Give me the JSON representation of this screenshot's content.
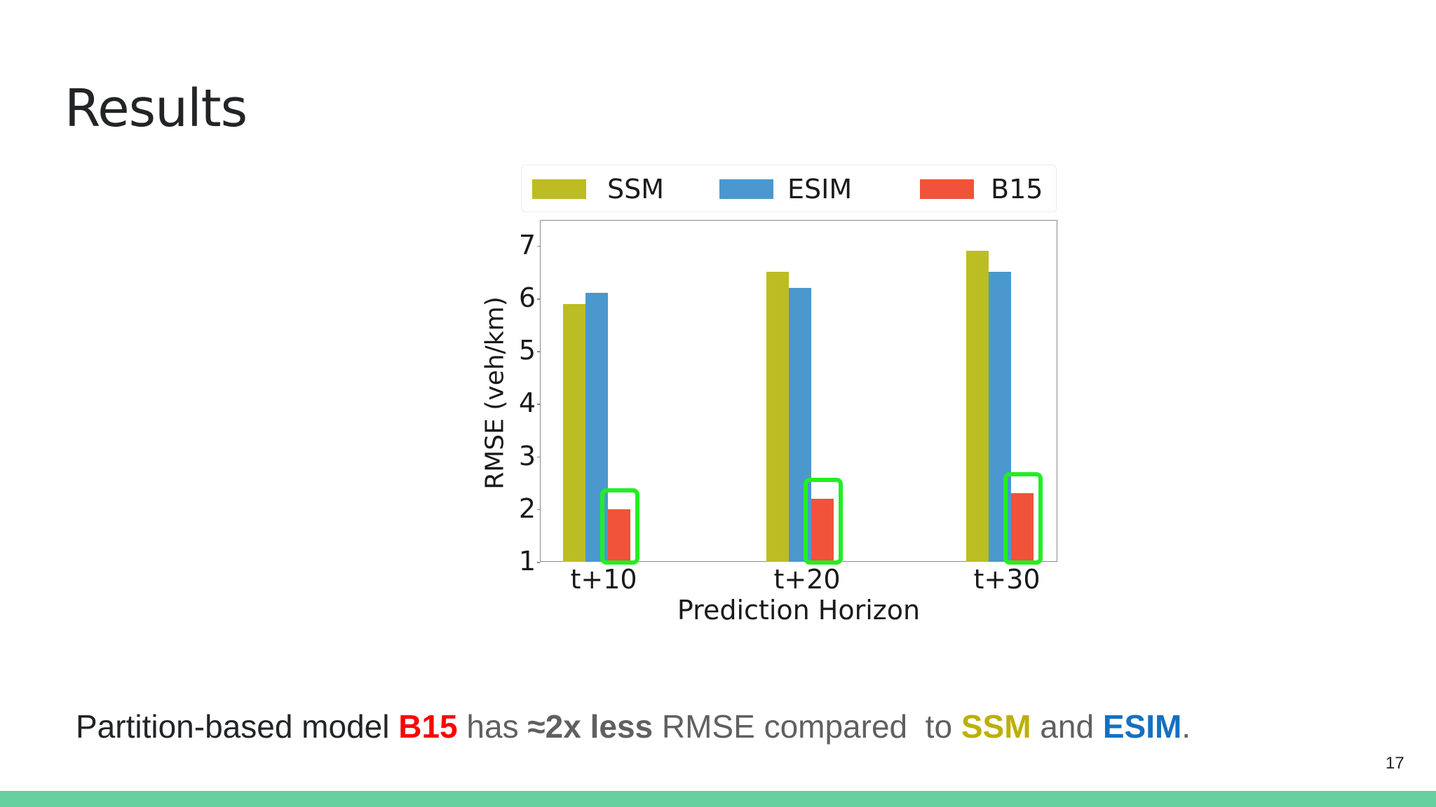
{
  "slide": {
    "title": "Results",
    "page_number": "17",
    "footer_color": "#66D19E"
  },
  "caption": {
    "part1": "Partition-based model ",
    "b15": "B15",
    "part2": " has ",
    "approx": "≈2x",
    "part3": " less",
    "part4": " RMSE compared  to ",
    "ssm": "SSM",
    "part5": " and ",
    "esim": "ESIM",
    "part6": ".",
    "colors": {
      "b15": "#FF0000",
      "ssm": "#BDB000",
      "esim": "#1570C0"
    }
  },
  "chart_data": {
    "type": "bar",
    "title": "",
    "categories": [
      "t+10",
      "t+20",
      "t+30"
    ],
    "series": [
      {
        "name": "SSM",
        "color": "#BCBD22",
        "values": [
          5.9,
          6.5,
          6.9
        ]
      },
      {
        "name": "ESIM",
        "color": "#4A98CE",
        "values": [
          6.1,
          6.2,
          6.5
        ]
      },
      {
        "name": "B15",
        "color": "#F0533A",
        "values": [
          2.0,
          2.2,
          2.3
        ]
      }
    ],
    "xlabel": "Prediction Horizon",
    "ylabel": "RMSE (veh/km)",
    "ylim": [
      1,
      7.65
    ],
    "yticks": [
      "1",
      "2",
      "3",
      "4",
      "5",
      "6",
      "7"
    ],
    "grid": false,
    "legend_position": "top",
    "annotations": [
      "green highlight boxes around B15 bars in every group"
    ],
    "highlight_color": "#22EE22"
  }
}
